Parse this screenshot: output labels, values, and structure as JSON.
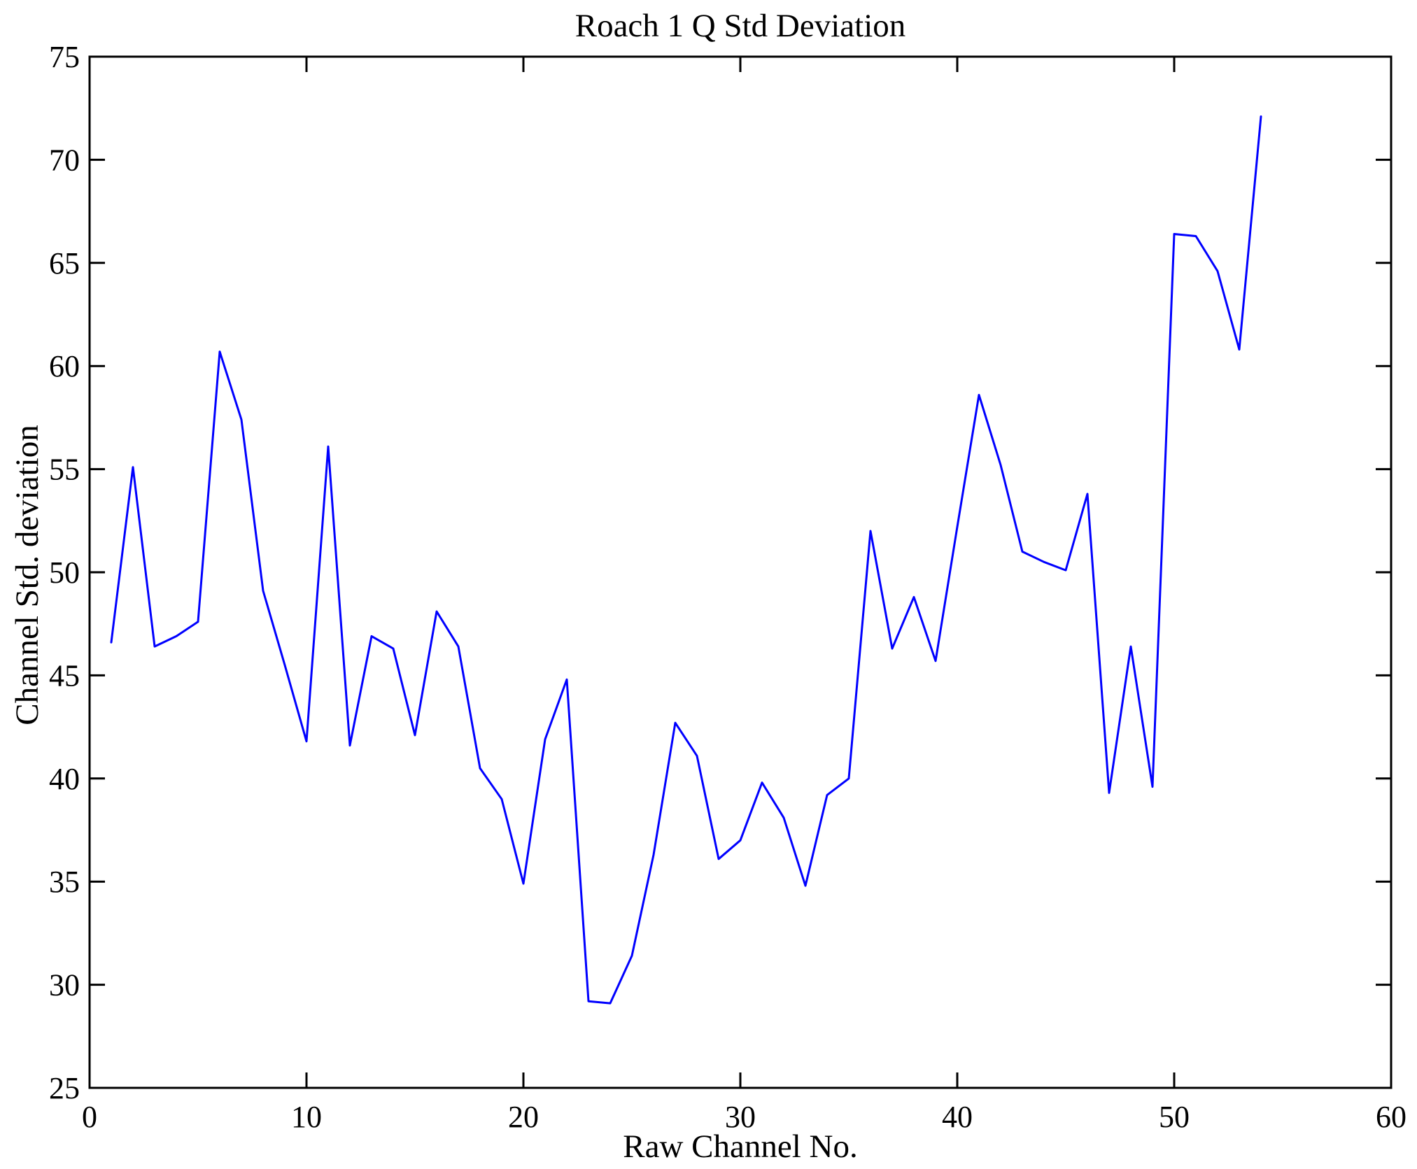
{
  "chart_data": {
    "type": "line",
    "title": "Roach 1 Q Std Deviation",
    "xlabel": "Raw Channel No.",
    "ylabel": "Channel Std. deviation",
    "xlim": [
      0,
      60
    ],
    "ylim": [
      25,
      75
    ],
    "xticks": [
      0,
      10,
      20,
      30,
      40,
      50,
      60
    ],
    "yticks": [
      25,
      30,
      35,
      40,
      45,
      50,
      55,
      60,
      65,
      70,
      75
    ],
    "grid": false,
    "legend": "none",
    "box": true,
    "line_color": "#0000FF",
    "axis_color": "#000000",
    "x": [
      1,
      2,
      3,
      4,
      5,
      6,
      7,
      8,
      9,
      10,
      11,
      12,
      13,
      14,
      15,
      16,
      17,
      18,
      19,
      20,
      21,
      22,
      23,
      24,
      25,
      26,
      27,
      28,
      29,
      30,
      31,
      32,
      33,
      34,
      35,
      36,
      37,
      38,
      39,
      40,
      41,
      42,
      43,
      44,
      45,
      46,
      47,
      48,
      49,
      50,
      51,
      52,
      53,
      54
    ],
    "values": [
      46.6,
      55.1,
      46.4,
      46.9,
      47.6,
      60.7,
      57.4,
      49.1,
      45.5,
      41.8,
      56.1,
      41.6,
      46.9,
      46.3,
      42.1,
      48.1,
      46.4,
      40.5,
      39.0,
      34.9,
      41.9,
      44.8,
      29.2,
      29.1,
      31.4,
      36.3,
      42.7,
      41.1,
      36.1,
      37.0,
      39.8,
      38.1,
      34.8,
      39.2,
      40.0,
      52.0,
      46.3,
      48.8,
      45.7,
      52.2,
      58.6,
      55.2,
      51.0,
      50.5,
      50.1,
      53.8,
      39.3,
      46.4,
      39.6,
      66.4,
      66.3,
      64.6,
      60.8,
      72.1
    ]
  }
}
